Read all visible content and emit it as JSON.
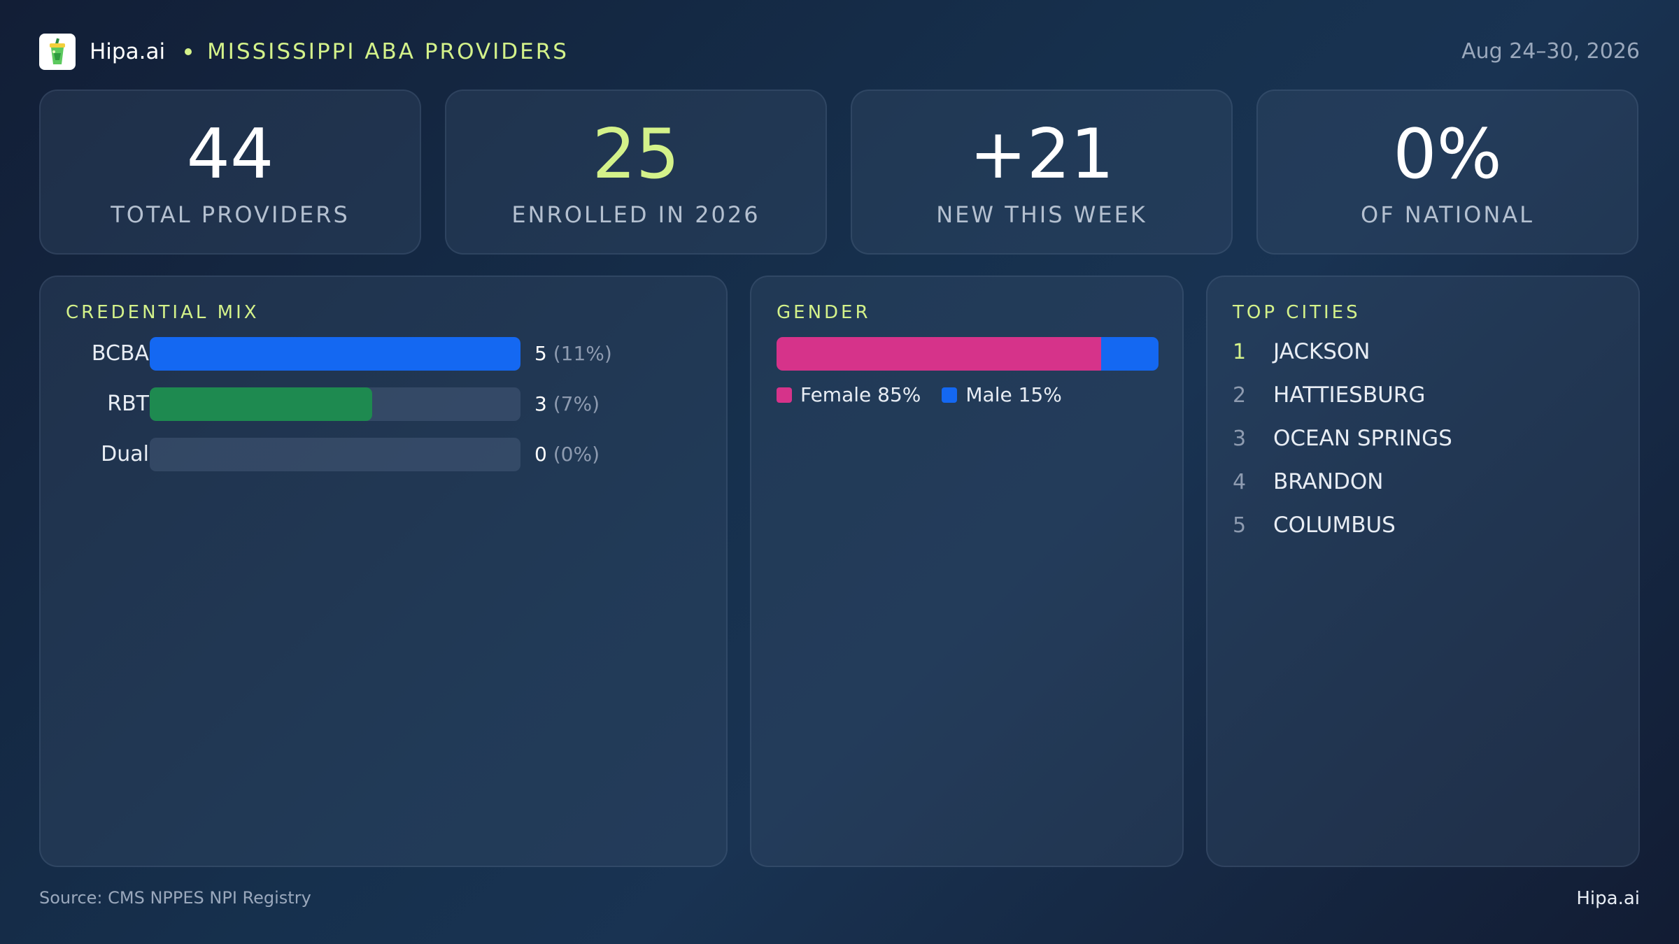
{
  "header": {
    "brand": "Hipa.ai",
    "subject": "MISSISSIPPI ABA PROVIDERS",
    "date_range": "Aug 24–30, 2026",
    "logo_icon": "cup-icon"
  },
  "kpis": [
    {
      "value": "44",
      "label": "TOTAL PROVIDERS"
    },
    {
      "value": "25",
      "label": "ENROLLED IN 2026"
    },
    {
      "value": "+21",
      "label": "NEW THIS WEEK"
    },
    {
      "value": "0%",
      "label": "OF NATIONAL"
    }
  ],
  "credential_mix": {
    "title": "CREDENTIAL MIX",
    "rows": [
      {
        "label": "BCBA",
        "count": "5",
        "pct": "(11%)",
        "fill": 1.0,
        "color": "#1468f2"
      },
      {
        "label": "RBT",
        "count": "3",
        "pct": "(7%)",
        "fill": 0.6,
        "color": "#1e8a50"
      },
      {
        "label": "Dual",
        "count": "0",
        "pct": "(0%)",
        "fill": 0.0,
        "color": "#1e8a50"
      }
    ]
  },
  "gender": {
    "title": "GENDER",
    "female": {
      "label": "Female 85%",
      "share": 85,
      "color": "#d6338a"
    },
    "male": {
      "label": "Male 15%",
      "share": 15,
      "color": "#1468f2"
    }
  },
  "top_cities": {
    "title": "TOP CITIES",
    "items": [
      {
        "rank": "1",
        "name": "JACKSON"
      },
      {
        "rank": "2",
        "name": "HATTIESBURG"
      },
      {
        "rank": "3",
        "name": "OCEAN SPRINGS"
      },
      {
        "rank": "4",
        "name": "BRANDON"
      },
      {
        "rank": "5",
        "name": "COLUMBUS"
      }
    ]
  },
  "footer": {
    "source": "Source: CMS NPPES NPI Registry",
    "brand": "Hipa.ai"
  },
  "colors": {
    "accent": "#d4f28a",
    "blue": "#1468f2",
    "green": "#1e8a50",
    "pink": "#d6338a"
  }
}
